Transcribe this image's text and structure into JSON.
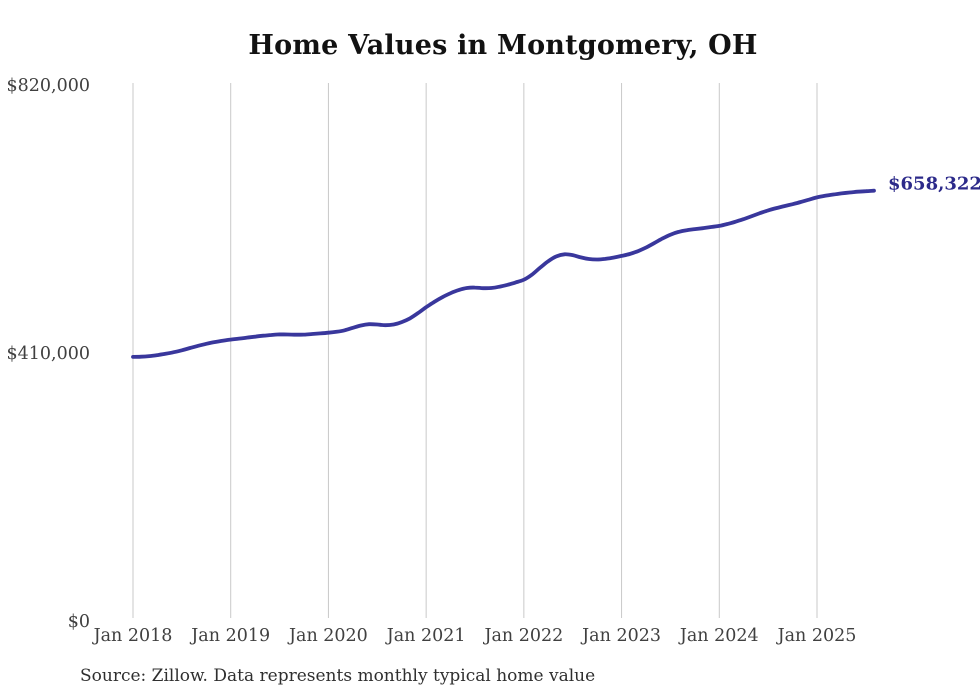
{
  "chart_data": {
    "type": "line",
    "title": "Home Values in Montgomery, OH",
    "source_note": "Source: Zillow. Data represents monthly typical home value",
    "xlabel": "",
    "ylabel": "",
    "ylim": [
      0,
      820000
    ],
    "grid": "vertical-only",
    "legend": "none",
    "end_label": "$658,322",
    "final_value": 658322,
    "colors": {
      "line": "#39379c",
      "end_label": "#2c2a8a",
      "grid": "#c9c9c9",
      "axis_text": "#404040",
      "title": "#121212",
      "source_text": "#2f2f2f",
      "background": "#ffffff"
    },
    "y_ticks": [
      {
        "value": 0,
        "label": "$0"
      },
      {
        "value": 410000,
        "label": "$410,000"
      },
      {
        "value": 820000,
        "label": "$820,000"
      }
    ],
    "x_ticks": [
      {
        "month_index": 0,
        "label": "Jan 2018"
      },
      {
        "month_index": 12,
        "label": "Jan 2019"
      },
      {
        "month_index": 24,
        "label": "Jan 2020"
      },
      {
        "month_index": 36,
        "label": "Jan 2021"
      },
      {
        "month_index": 48,
        "label": "Jan 2022"
      },
      {
        "month_index": 60,
        "label": "Jan 2023"
      },
      {
        "month_index": 72,
        "label": "Jan 2024"
      },
      {
        "month_index": 84,
        "label": "Jan 2025"
      }
    ],
    "series": [
      {
        "name": "Monthly typical home value",
        "frequency": "monthly",
        "dates": [
          "2018-01",
          "2018-02",
          "2018-03",
          "2018-04",
          "2018-05",
          "2018-06",
          "2018-07",
          "2018-08",
          "2018-09",
          "2018-10",
          "2018-11",
          "2018-12",
          "2019-01",
          "2019-02",
          "2019-03",
          "2019-04",
          "2019-05",
          "2019-06",
          "2019-07",
          "2019-08",
          "2019-09",
          "2019-10",
          "2019-11",
          "2019-12",
          "2020-01",
          "2020-02",
          "2020-03",
          "2020-04",
          "2020-05",
          "2020-06",
          "2020-07",
          "2020-08",
          "2020-09",
          "2020-10",
          "2020-11",
          "2020-12",
          "2021-01",
          "2021-02",
          "2021-03",
          "2021-04",
          "2021-05",
          "2021-06",
          "2021-07",
          "2021-08",
          "2021-09",
          "2021-10",
          "2021-11",
          "2021-12",
          "2022-01",
          "2022-02",
          "2022-03",
          "2022-04",
          "2022-05",
          "2022-06",
          "2022-07",
          "2022-08",
          "2022-09",
          "2022-10",
          "2022-11",
          "2022-12",
          "2023-01",
          "2023-02",
          "2023-03",
          "2023-04",
          "2023-05",
          "2023-06",
          "2023-07",
          "2023-08",
          "2023-09",
          "2023-10",
          "2023-11",
          "2023-12",
          "2024-01",
          "2024-02",
          "2024-03",
          "2024-04",
          "2024-05",
          "2024-06",
          "2024-07",
          "2024-08",
          "2024-09",
          "2024-10",
          "2024-11",
          "2024-12",
          "2025-01",
          "2025-02",
          "2025-03",
          "2025-04",
          "2025-05",
          "2025-06",
          "2025-07",
          "2025-08"
        ],
        "values": [
          404000,
          404300,
          405200,
          406800,
          408800,
          411200,
          414200,
          417600,
          421000,
          424000,
          426700,
          428800,
          430500,
          432000,
          433500,
          435000,
          436400,
          437600,
          438400,
          438300,
          438000,
          438200,
          439000,
          440000,
          441000,
          442400,
          444700,
          448500,
          452000,
          454000,
          453600,
          452600,
          453600,
          457200,
          463000,
          471000,
          480000,
          488200,
          495400,
          501500,
          506300,
          509400,
          510100,
          509200,
          509400,
          511400,
          514400,
          518000,
          522200,
          530000,
          540500,
          550500,
          557800,
          561000,
          559800,
          556200,
          553800,
          553000,
          554000,
          556000,
          558500,
          561500,
          565800,
          571300,
          578000,
          585000,
          591000,
          595300,
          597900,
          599500,
          601000,
          602700,
          604500,
          607400,
          610800,
          614900,
          619400,
          624000,
          628200,
          631700,
          634700,
          637700,
          641000,
          644600,
          648000,
          650500,
          652500,
          654100,
          655500,
          656700,
          657600,
          658322
        ]
      }
    ]
  }
}
